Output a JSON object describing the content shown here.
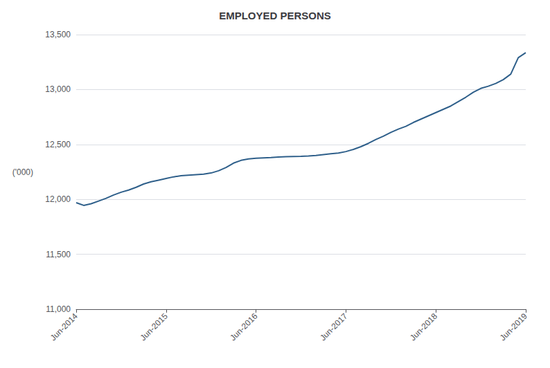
{
  "chart_data": {
    "type": "line",
    "title": "EMPLOYED PERSONS",
    "ylabel": "('000)",
    "color": "#2E5F8A",
    "grid": true,
    "x": [
      0,
      1,
      2,
      3,
      4,
      5,
      6,
      7,
      8,
      9,
      10,
      11,
      12,
      13,
      14,
      15,
      16,
      17,
      18,
      19,
      20,
      21,
      22,
      23,
      24,
      25,
      26,
      27,
      28,
      29,
      30,
      31,
      32,
      33,
      34,
      35,
      36,
      37,
      38,
      39,
      40,
      41,
      42,
      43,
      44,
      45,
      46,
      47,
      48,
      49,
      50,
      51,
      52,
      53,
      54,
      55,
      56,
      57,
      58,
      59,
      60
    ],
    "values": [
      11970,
      11945,
      11960,
      11985,
      12010,
      12040,
      12065,
      12085,
      12110,
      12140,
      12160,
      12175,
      12190,
      12205,
      12215,
      12220,
      12225,
      12230,
      12240,
      12260,
      12290,
      12330,
      12355,
      12368,
      12375,
      12378,
      12380,
      12385,
      12388,
      12390,
      12392,
      12395,
      12400,
      12408,
      12415,
      12422,
      12435,
      12455,
      12480,
      12510,
      12545,
      12575,
      12610,
      12640,
      12665,
      12700,
      12730,
      12760,
      12790,
      12820,
      12850,
      12890,
      12930,
      12975,
      13010,
      13030,
      13055,
      13090,
      13140,
      13290,
      13335
    ],
    "xlim": [
      0,
      60
    ],
    "xticks": [
      {
        "value": 0,
        "label": "Jun-2014"
      },
      {
        "value": 12,
        "label": "Jun-2015"
      },
      {
        "value": 24,
        "label": "Jun-2016"
      },
      {
        "value": 36,
        "label": "Jun-2017"
      },
      {
        "value": 48,
        "label": "Jun-2018"
      },
      {
        "value": 60,
        "label": "Jun-2019"
      }
    ],
    "ylim": [
      11000,
      13500
    ],
    "yticks": [
      {
        "value": 11000,
        "label": "11,000"
      },
      {
        "value": 11500,
        "label": "11,500"
      },
      {
        "value": 12000,
        "label": "12,000"
      },
      {
        "value": 12500,
        "label": "12,500"
      },
      {
        "value": 13000,
        "label": "13,000"
      },
      {
        "value": 13500,
        "label": "13,500"
      }
    ]
  }
}
